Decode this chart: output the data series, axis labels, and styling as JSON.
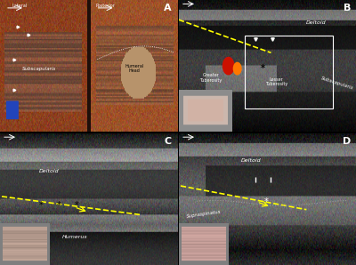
{
  "figsize": [
    4.0,
    2.98
  ],
  "dpi": 100,
  "layout": {
    "rows": 2,
    "cols": 2,
    "panels": [
      "A",
      "B",
      "C",
      "D"
    ]
  },
  "panel_A": {
    "bg_color": "#c0562a",
    "label": "A",
    "left_label": "Lateral",
    "right_label": "Posterior",
    "left_text": "Subscapularis",
    "right_text": "Humeral\nHead"
  },
  "panel_B": {
    "bg_color": "#1a1a1a",
    "label": "B",
    "texts": [
      "Deltoid",
      "Subscapularis",
      "Greater\nTuberosity",
      "Lesser\nTuberosity"
    ],
    "line_color": "#ffff00",
    "line_style": "--"
  },
  "panel_C": {
    "bg_color": "#1a1a1a",
    "label": "C",
    "texts": [
      "Deltoid",
      "Humerus"
    ],
    "line_color": "#ffff00",
    "line_style": "--"
  },
  "panel_D": {
    "bg_color": "#1a1a1a",
    "label": "D",
    "texts": [
      "Deltoid",
      "Supraspinatus"
    ],
    "line_color": "#ffff00",
    "line_style": "--",
    "dashed_color": "#888888"
  },
  "border_color": "#ffffff",
  "border_width": 1.5,
  "label_fontsize": 8,
  "annotation_fontsize": 5.5,
  "label_color": "#ffffff",
  "scale_bar_color": "#ffffff"
}
